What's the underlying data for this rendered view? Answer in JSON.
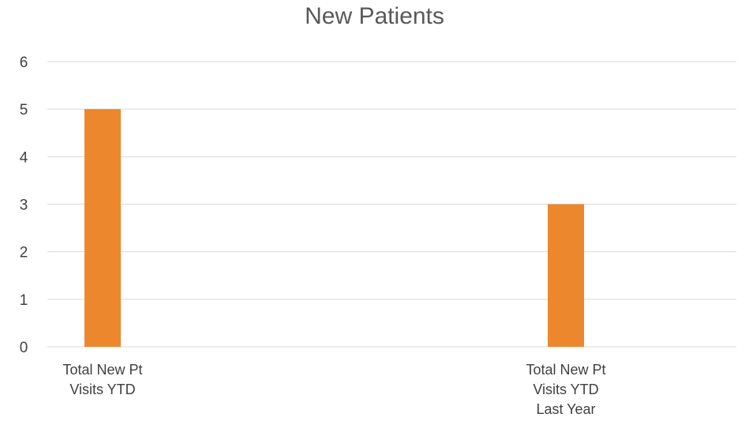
{
  "chart_data": {
    "type": "bar",
    "title": "New Patients",
    "categories": [
      "Total New Pt Visits YTD",
      "Total New Pt Visits YTD Last Year"
    ],
    "category_label_lines": [
      [
        "Total New Pt",
        "Visits YTD"
      ],
      [
        "Total New Pt",
        "Visits YTD",
        "Last Year"
      ]
    ],
    "series": [
      {
        "values": [
          5,
          3
        ],
        "color": "#ed872d"
      }
    ],
    "ylim": [
      0,
      6
    ],
    "yticks": [
      0,
      1,
      2,
      3,
      4,
      5,
      6
    ],
    "grid": true,
    "legend": "none",
    "xlabel": "",
    "ylabel": ""
  }
}
